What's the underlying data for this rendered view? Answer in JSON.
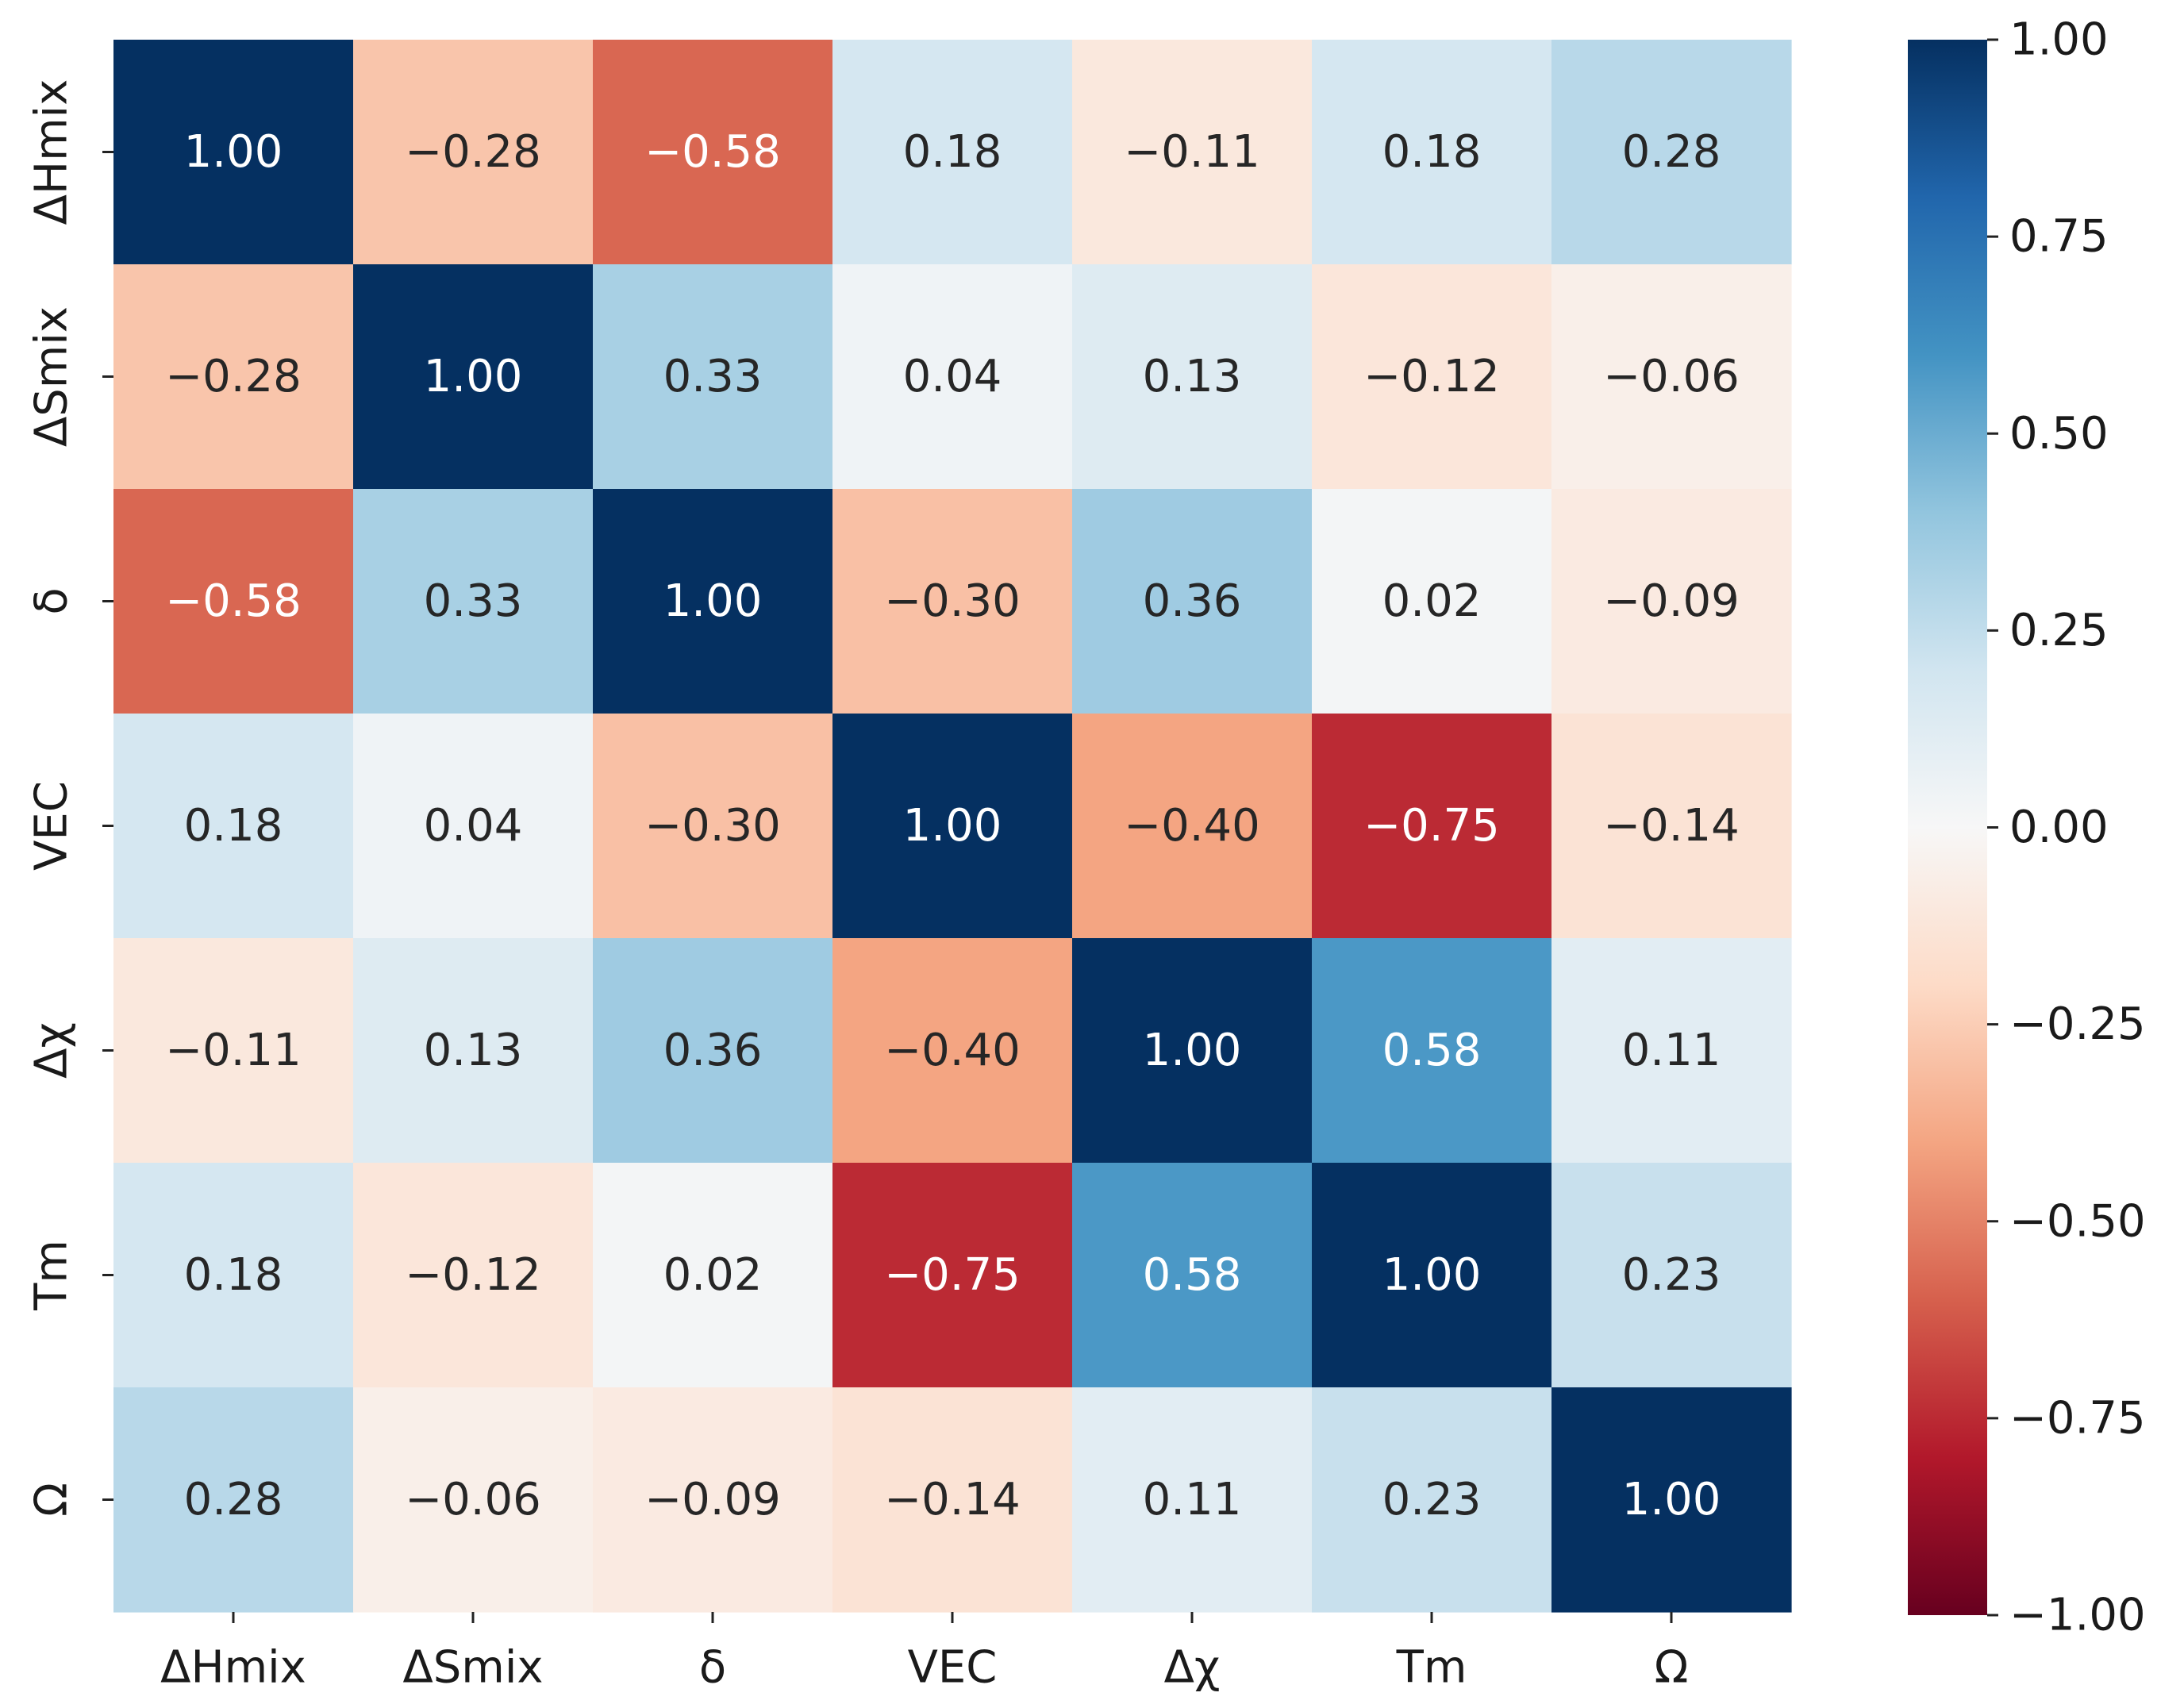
{
  "chart_data": {
    "type": "heatmap",
    "title": "",
    "xlabel": "",
    "ylabel": "",
    "labels": [
      "ΔHmix",
      "ΔSmix",
      "δ",
      "VEC",
      "Δχ",
      "Tm",
      "Ω"
    ],
    "matrix": [
      [
        1.0,
        -0.28,
        -0.58,
        0.18,
        -0.11,
        0.18,
        0.28
      ],
      [
        -0.28,
        1.0,
        0.33,
        0.04,
        0.13,
        -0.12,
        -0.06
      ],
      [
        -0.58,
        0.33,
        1.0,
        -0.3,
        0.36,
        0.02,
        -0.09
      ],
      [
        0.18,
        0.04,
        -0.3,
        1.0,
        -0.4,
        -0.75,
        -0.14
      ],
      [
        -0.11,
        0.13,
        0.36,
        -0.4,
        1.0,
        0.58,
        0.11
      ],
      [
        0.18,
        -0.12,
        0.02,
        -0.75,
        0.58,
        1.0,
        0.23
      ],
      [
        0.28,
        -0.06,
        -0.09,
        -0.14,
        0.11,
        0.23,
        1.0
      ]
    ],
    "colorbar": {
      "range": [
        -1.0,
        1.0
      ],
      "ticks": [
        "1.00",
        "0.75",
        "0.50",
        "0.25",
        "0.00",
        "−0.25",
        "−0.50",
        "−0.75",
        "−1.00"
      ],
      "tick_values": [
        1.0,
        0.75,
        0.5,
        0.25,
        0.0,
        -0.25,
        -0.5,
        -0.75,
        -1.0
      ],
      "colormap": "RdBu",
      "stops": [
        "#67001f",
        "#b2182b",
        "#d6604d",
        "#f4a582",
        "#fddbc7",
        "#f7f7f7",
        "#d1e5f0",
        "#92c5de",
        "#4393c3",
        "#2166ac",
        "#053061"
      ]
    }
  }
}
